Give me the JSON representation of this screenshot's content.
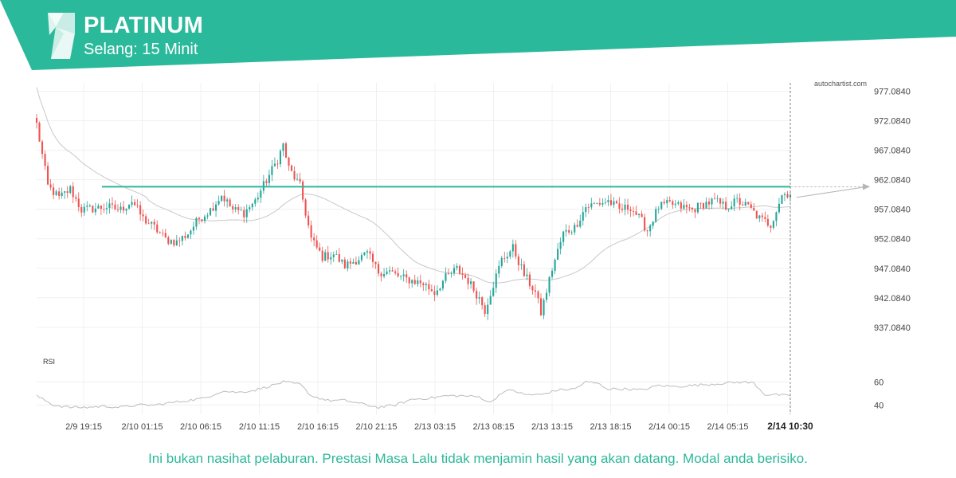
{
  "header": {
    "title": "PLATINUM",
    "subtitle": "Selang: 15 Minit",
    "brand_color": "#2bb99b"
  },
  "watermark": "autochartist.com",
  "footer": {
    "disclaimer": "Ini bukan nasihat pelaburan. Prestasi Masa Lalu tidak menjamin hasil yang akan datang. Modal anda berisiko."
  },
  "chart_data": {
    "type": "candlestick",
    "colors": {
      "up": "#26a69a",
      "down": "#ef5350",
      "level": "#2bb99b",
      "ma": "#c8c8c8",
      "rsi": "#bdbdbd",
      "grid": "#f0f0f0"
    },
    "y_axis": {
      "ylim": [
        934.5,
        978.5
      ],
      "ticks": [
        "977.0840",
        "972.0840",
        "967.0840",
        "962.0840",
        "957.0840",
        "952.0840",
        "947.0840",
        "942.0840",
        "937.0840"
      ],
      "tick_values": [
        977.084,
        972.084,
        967.084,
        962.084,
        957.084,
        952.084,
        947.084,
        942.084,
        937.084
      ]
    },
    "x_axis": {
      "labels": [
        "2/9 19:15",
        "2/10 01:15",
        "2/10 06:15",
        "2/10 11:15",
        "2/10 16:15",
        "2/10 21:15",
        "2/13 03:15",
        "2/13 08:15",
        "2/13 13:15",
        "2/13 18:15",
        "2/14 00:15",
        "2/14 05:15",
        "2/14 10:30"
      ],
      "highlight_label": "2/14 10:30"
    },
    "resistance_level": {
      "value": 960.9
    },
    "price_anchors": [
      [
        0,
        971.5
      ],
      [
        4,
        961
      ],
      [
        8,
        959
      ],
      [
        12,
        960.5
      ],
      [
        16,
        957
      ],
      [
        20,
        957.2
      ],
      [
        25,
        957.5
      ],
      [
        30,
        957
      ],
      [
        34,
        958.5
      ],
      [
        38,
        955.5
      ],
      [
        42,
        954
      ],
      [
        46,
        952
      ],
      [
        50,
        951.5
      ],
      [
        54,
        953
      ],
      [
        58,
        955.5
      ],
      [
        62,
        957
      ],
      [
        66,
        959.5
      ],
      [
        70,
        957
      ],
      [
        74,
        956.5
      ],
      [
        78,
        958.5
      ],
      [
        82,
        962
      ],
      [
        86,
        965.5
      ],
      [
        88,
        968
      ],
      [
        90,
        964
      ],
      [
        94,
        961
      ],
      [
        98,
        952
      ],
      [
        102,
        949
      ],
      [
        106,
        949.5
      ],
      [
        110,
        947.5
      ],
      [
        114,
        948.5
      ],
      [
        118,
        949.5
      ],
      [
        122,
        946.5
      ],
      [
        126,
        946.5
      ],
      [
        130,
        945.5
      ],
      [
        134,
        945
      ],
      [
        138,
        944.5
      ],
      [
        142,
        943
      ],
      [
        146,
        945.5
      ],
      [
        150,
        947
      ],
      [
        154,
        945
      ],
      [
        158,
        942
      ],
      [
        160,
        940
      ],
      [
        162,
        943
      ],
      [
        166,
        948.5
      ],
      [
        170,
        950.5
      ],
      [
        174,
        946
      ],
      [
        178,
        943
      ],
      [
        180,
        939.5
      ],
      [
        184,
        947
      ],
      [
        188,
        953
      ],
      [
        192,
        954
      ],
      [
        196,
        957.5
      ],
      [
        200,
        958
      ],
      [
        204,
        958.5
      ],
      [
        208,
        957
      ],
      [
        212,
        957.5
      ],
      [
        216,
        955
      ],
      [
        218,
        953.5
      ],
      [
        222,
        957.5
      ],
      [
        226,
        958
      ],
      [
        230,
        957.5
      ],
      [
        234,
        957
      ],
      [
        238,
        958
      ],
      [
        242,
        958.5
      ],
      [
        246,
        957.5
      ],
      [
        250,
        958.5
      ],
      [
        254,
        957.5
      ],
      [
        258,
        955.5
      ],
      [
        262,
        954.5
      ],
      [
        266,
        959.5
      ],
      [
        268,
        959.8
      ]
    ],
    "rsi": {
      "label": "RSI",
      "ticks": [
        "60",
        "40"
      ],
      "tick_values": [
        60,
        40
      ],
      "ylim": [
        32,
        70
      ],
      "anchors": [
        [
          0,
          48
        ],
        [
          6,
          40
        ],
        [
          12,
          38
        ],
        [
          18,
          38
        ],
        [
          24,
          39
        ],
        [
          30,
          38
        ],
        [
          36,
          40
        ],
        [
          42,
          40
        ],
        [
          48,
          42
        ],
        [
          54,
          44
        ],
        [
          60,
          46
        ],
        [
          66,
          52
        ],
        [
          72,
          51
        ],
        [
          78,
          53
        ],
        [
          84,
          57
        ],
        [
          88,
          60
        ],
        [
          94,
          58
        ],
        [
          98,
          48
        ],
        [
          104,
          44
        ],
        [
          110,
          44
        ],
        [
          116,
          41
        ],
        [
          122,
          38
        ],
        [
          128,
          40
        ],
        [
          134,
          45
        ],
        [
          140,
          46
        ],
        [
          146,
          48
        ],
        [
          152,
          48
        ],
        [
          158,
          47
        ],
        [
          162,
          42
        ],
        [
          166,
          51
        ],
        [
          170,
          53
        ],
        [
          174,
          49
        ],
        [
          180,
          49
        ],
        [
          186,
          53
        ],
        [
          192,
          54
        ],
        [
          196,
          60
        ],
        [
          200,
          59
        ],
        [
          204,
          54
        ],
        [
          210,
          54
        ],
        [
          216,
          53
        ],
        [
          222,
          57
        ],
        [
          228,
          56
        ],
        [
          234,
          57
        ],
        [
          240,
          58
        ],
        [
          246,
          59
        ],
        [
          252,
          60
        ],
        [
          256,
          59
        ],
        [
          260,
          49
        ],
        [
          264,
          49
        ],
        [
          268,
          48
        ]
      ]
    }
  }
}
